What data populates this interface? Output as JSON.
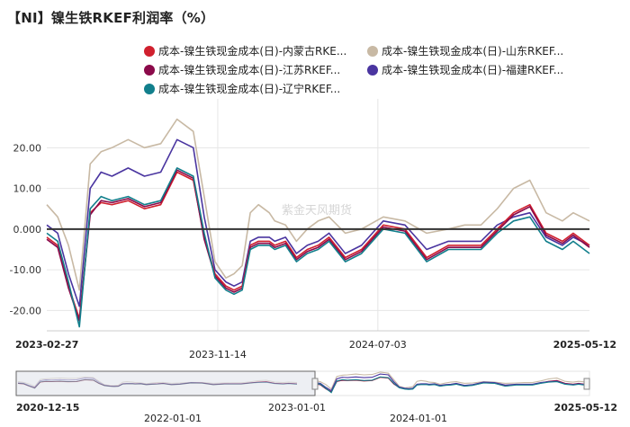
{
  "header": {
    "title": "【NI】镍生铁RKEF利润率（%）"
  },
  "watermark": "紫金天风期货",
  "colors": {
    "neimenggu": "#d0202e",
    "shandong": "#c8b9a4",
    "jiangsu": "#8b0a4a",
    "fujian": "#4a35a0",
    "liaoning": "#127f8c"
  },
  "chart_data": {
    "type": "line",
    "title": "【NI】镍生铁RKEF利润率（%）",
    "xlabel": "",
    "ylabel": "",
    "ylim": [
      -25,
      32
    ],
    "yticks": [
      "20.00",
      "10.00",
      "0.000",
      "-10.00",
      "-20.00"
    ],
    "ytick_values": [
      20,
      10,
      0,
      -10,
      -20
    ],
    "x_start": "2023-02-27",
    "x_end": "2025-05-12",
    "x_ticks": [
      "2023-02-27",
      "2023-11-14",
      "2024-07-03",
      "2025-05-12"
    ],
    "grid": true,
    "legend_position": "top",
    "anchor_x": [
      0,
      0.02,
      0.04,
      0.06,
      0.08,
      0.1,
      0.12,
      0.15,
      0.18,
      0.21,
      0.24,
      0.27,
      0.29,
      0.31,
      0.33,
      0.345,
      0.36,
      0.375,
      0.39,
      0.41,
      0.42,
      0.44,
      0.46,
      0.48,
      0.5,
      0.52,
      0.55,
      0.58,
      0.62,
      0.66,
      0.7,
      0.74,
      0.77,
      0.8,
      0.83,
      0.86,
      0.89,
      0.92,
      0.95,
      0.97,
      1.0
    ],
    "series": [
      {
        "name": "成本-镍生铁现金成本(日)-内蒙古RKE...",
        "key": "neimenggu",
        "values": [
          -2,
          -4,
          -14,
          -22,
          4,
          6.5,
          6,
          7,
          5,
          6,
          14,
          12,
          -2,
          -11,
          -14,
          -15,
          -14,
          -4,
          -3,
          -3,
          -4,
          -3,
          -7,
          -5,
          -4,
          -2,
          -7,
          -5,
          1,
          0,
          -7,
          -4,
          -4,
          -4,
          0,
          4,
          6,
          -1,
          -3,
          -1,
          -4
        ]
      },
      {
        "name": "成本-镍生铁现金成本(日)-山东RKEF...",
        "key": "shandong",
        "values": [
          6,
          3,
          -4,
          -15,
          16,
          19,
          20,
          22,
          20,
          21,
          27,
          24,
          8,
          -8,
          -12,
          -11,
          -9,
          4,
          6,
          4,
          2,
          1,
          -3,
          0,
          2,
          3,
          -1,
          0,
          3,
          2,
          -1,
          0,
          1,
          1,
          5,
          10,
          12,
          4,
          2,
          4,
          2
        ]
      },
      {
        "name": "成本-镍生铁现金成本(日)-江苏RKEF...",
        "key": "jiangsu",
        "values": [
          -2.5,
          -4.5,
          -14.5,
          -22.5,
          3.5,
          7,
          6.5,
          7.5,
          5.5,
          6.5,
          14.5,
          12.5,
          -2.5,
          -11.5,
          -14.5,
          -15.5,
          -14.5,
          -4.5,
          -3.5,
          -3.5,
          -4.5,
          -3.5,
          -7.5,
          -5.5,
          -4.5,
          -2.5,
          -7.5,
          -5.5,
          0.5,
          -0.5,
          -7.5,
          -4.5,
          -4.5,
          -4.5,
          -0.5,
          3.5,
          5.5,
          -1.5,
          -3.5,
          -1.5,
          -4.5
        ]
      },
      {
        "name": "成本-镍生铁现金成本(日)-福建RKEF...",
        "key": "fujian",
        "values": [
          1,
          -1,
          -11,
          -19,
          10,
          14,
          13,
          15,
          13,
          14,
          22,
          20,
          3,
          -10,
          -13,
          -14,
          -13,
          -3,
          -2,
          -2,
          -3,
          -2,
          -6,
          -4,
          -3,
          -1,
          -6,
          -4,
          2,
          1,
          -5,
          -3,
          -3,
          -3,
          1,
          3,
          4,
          -2,
          -4,
          -2,
          -4
        ]
      },
      {
        "name": "成本-镍生铁现金成本(日)-辽宁RKEF...",
        "key": "liaoning",
        "values": [
          -1,
          -3,
          -13,
          -24,
          5,
          8,
          7,
          8,
          6,
          7,
          15,
          13,
          -1,
          -12,
          -15,
          -16,
          -15,
          -5,
          -4,
          -4,
          -5,
          -4,
          -8,
          -6,
          -5,
          -3,
          -8,
          -6,
          0,
          -1,
          -8,
          -5,
          -5,
          -5,
          -1,
          2,
          3,
          -3,
          -5,
          -3,
          -6
        ]
      }
    ]
  },
  "navigator": {
    "start_label": "2020-12-15",
    "end_label": "2025-05-12",
    "ticks": [
      "2022-01-01",
      "2023-01-01",
      "2024-01-01"
    ]
  }
}
